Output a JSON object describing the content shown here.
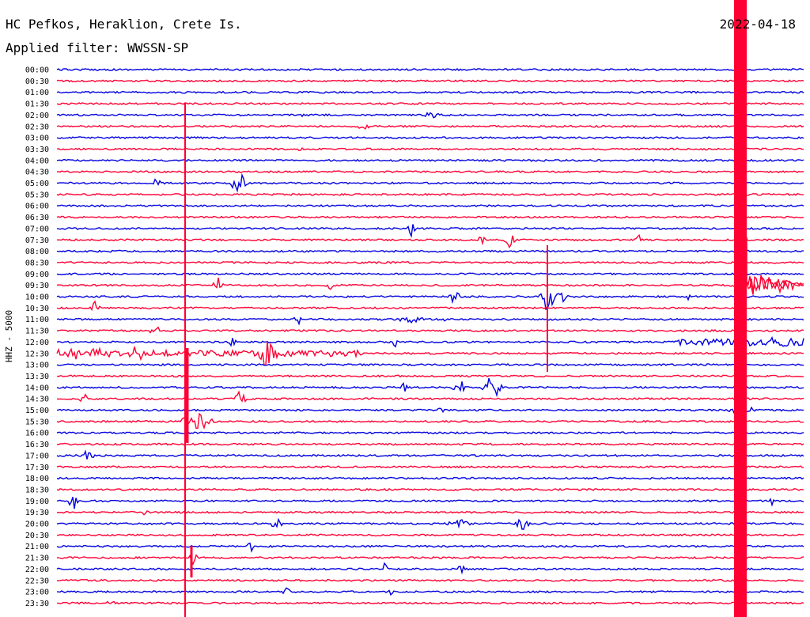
{
  "header": {
    "station": "HC Pefkos, Heraklion, Crete Is.",
    "filter": "Applied filter: WWSSN-SP",
    "date": "2022-04-18"
  },
  "chart_data": {
    "type": "line",
    "title": "HC Pefkos, Heraklion, Crete Is.",
    "subtitle": "Applied filter: WWSSN-SP",
    "ylabel": "HHZ - 5000",
    "xlabel": "",
    "categories": [
      "00:00",
      "00:30",
      "01:00",
      "01:30",
      "02:00",
      "02:30",
      "03:00",
      "03:30",
      "04:00",
      "04:30",
      "05:00",
      "05:30",
      "06:00",
      "06:30",
      "07:00",
      "07:30",
      "08:00",
      "08:30",
      "09:00",
      "09:30",
      "10:00",
      "10:30",
      "11:00",
      "11:30",
      "12:00",
      "12:30",
      "13:00",
      "13:30",
      "14:00",
      "14:30",
      "15:00",
      "15:30",
      "16:00",
      "16:30",
      "17:00",
      "17:30",
      "18:00",
      "18:30",
      "19:00",
      "19:30",
      "20:00",
      "20:30",
      "21:00",
      "21:30",
      "22:00",
      "22:30",
      "23:00",
      "23:30"
    ],
    "trace_colors": [
      "#0000e0",
      "#ff0033"
    ],
    "grid": false,
    "legend": "none"
  }
}
